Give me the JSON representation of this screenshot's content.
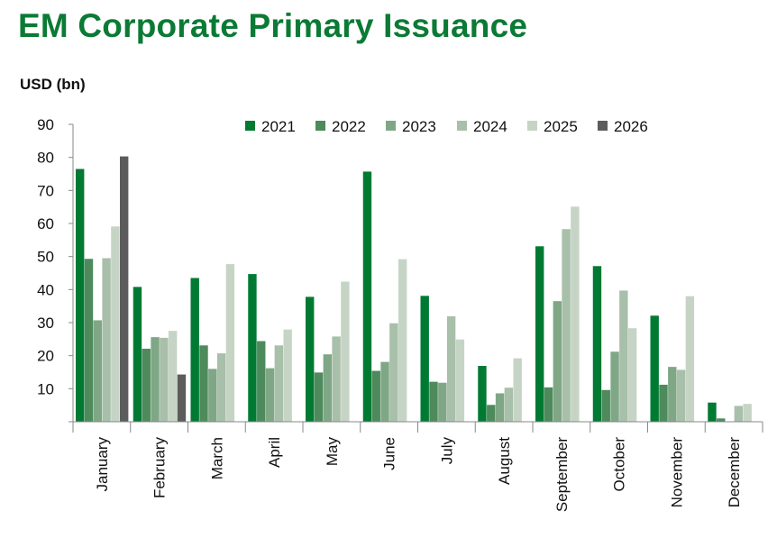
{
  "title": "EM Corporate Primary Issuance",
  "unit_label": "USD (bn)",
  "chart_data": {
    "type": "bar",
    "title": "EM Corporate Primary Issuance",
    "ylabel": "USD (bn)",
    "xlabel": "",
    "ylim": [
      0,
      90
    ],
    "yticks": [
      10,
      20,
      30,
      40,
      50,
      60,
      70,
      80,
      90
    ],
    "legend_position": "top-right",
    "grid": false,
    "categories": [
      "January",
      "February",
      "March",
      "April",
      "May",
      "June",
      "July",
      "August",
      "September",
      "October",
      "November",
      "December"
    ],
    "series": [
      {
        "name": "2021",
        "color": "#007a33",
        "values": [
          76.5,
          40.8,
          43.5,
          44.7,
          37.8,
          75.7,
          38.1,
          16.9,
          53.1,
          47.1,
          32.1,
          5.8
        ]
      },
      {
        "name": "2022",
        "color": "#4e8a5c",
        "values": [
          49.3,
          22.1,
          23.1,
          24.4,
          14.9,
          15.4,
          12.1,
          5.1,
          10.4,
          9.6,
          11.2,
          1.0
        ]
      },
      {
        "name": "2023",
        "color": "#7fa786",
        "values": [
          30.7,
          25.6,
          16.0,
          16.2,
          20.4,
          18.1,
          11.8,
          8.6,
          36.5,
          21.2,
          16.6,
          null
        ]
      },
      {
        "name": "2024",
        "color": "#a8bfa9",
        "values": [
          49.5,
          25.4,
          20.7,
          23.1,
          25.8,
          29.8,
          31.9,
          10.3,
          58.3,
          39.7,
          15.7,
          4.8
        ]
      },
      {
        "name": "2025",
        "color": "#c6d4c5",
        "values": [
          59.1,
          27.5,
          47.7,
          27.9,
          42.4,
          49.2,
          24.9,
          19.2,
          65.1,
          28.3,
          38.0,
          5.4
        ]
      },
      {
        "name": "2026",
        "color": "#5c5c5c",
        "values": [
          80.3,
          14.3,
          null,
          null,
          null,
          null,
          null,
          null,
          null,
          null,
          null,
          null
        ]
      }
    ]
  }
}
